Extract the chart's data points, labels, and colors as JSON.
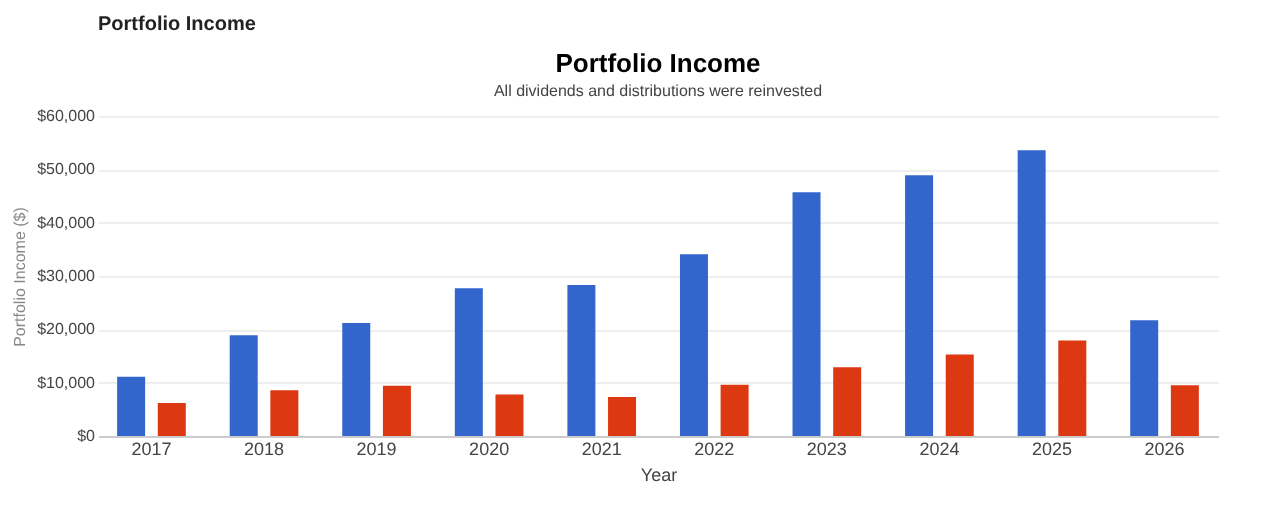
{
  "chart_data": {
    "type": "bar",
    "title": "Portfolio Income",
    "subtitle": "All dividends and distributions were reinvested",
    "annotations": [
      "Portfolio Income"
    ],
    "xlabel": "Year",
    "ylabel": "Portfolio Income ($)",
    "categories": [
      "2017",
      "2018",
      "2019",
      "2020",
      "2021",
      "2022",
      "2023",
      "2024",
      "2025",
      "2026"
    ],
    "series": [
      {
        "color": "#3366cc",
        "values": [
          11100,
          18900,
          21200,
          27700,
          28300,
          34100,
          45700,
          48900,
          53600,
          21700
        ]
      },
      {
        "color": "#dc3912",
        "values": [
          6200,
          8600,
          9400,
          7800,
          7300,
          9600,
          12900,
          15300,
          17900,
          9500
        ]
      }
    ],
    "ylim": [
      0,
      60000
    ],
    "yticks": [
      {
        "value": 0,
        "label": "$0"
      },
      {
        "value": 10000,
        "label": "$10,000"
      },
      {
        "value": 20000,
        "label": "$20,000"
      },
      {
        "value": 30000,
        "label": "$30,000"
      },
      {
        "value": 40000,
        "label": "$40,000"
      },
      {
        "value": 50000,
        "label": "$50,000"
      },
      {
        "value": 60000,
        "label": "$60,000"
      }
    ],
    "grid": "y",
    "legend": false
  }
}
